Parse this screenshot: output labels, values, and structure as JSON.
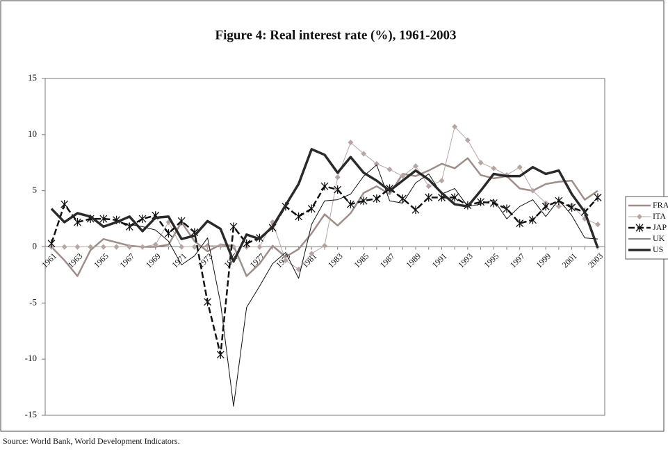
{
  "chart_data": {
    "type": "line",
    "title": "Figure 4: Real interest rate (%), 1961-2003",
    "source": "Source: World Bank, World Development Indicators.",
    "categories": [
      "1961",
      null,
      "1963",
      null,
      "1965",
      null,
      "1967",
      null,
      "1969",
      null,
      "1971",
      null,
      "1973",
      null,
      "1975",
      null,
      "1977",
      null,
      "1979",
      null,
      "1981",
      null,
      "1983",
      null,
      "1985",
      null,
      "1987",
      null,
      "1989",
      null,
      "1991",
      null,
      "1993",
      null,
      "1995",
      null,
      "1997",
      null,
      "1999",
      null,
      "2001",
      null,
      "2003"
    ],
    "ylim": [
      -15,
      15
    ],
    "yticks": [
      -15,
      -10,
      -5,
      0,
      5,
      10,
      15
    ],
    "grid": false,
    "legend": "right",
    "series": [
      {
        "name": "FRA",
        "color": "#9e8e89",
        "style": "medium",
        "marker": "none",
        "values": [
          0,
          -1.2,
          -2.6,
          -0.3,
          0.7,
          0.4,
          0.1,
          0,
          0,
          0.2,
          2.2,
          0.5,
          -0.4,
          0.2,
          0.1,
          -2.6,
          -1.5,
          0.1,
          -0.9,
          -0.2,
          1.2,
          2.9,
          1.9,
          3.0,
          4.8,
          5.4,
          4.7,
          6.5,
          6.3,
          6.8,
          7.4,
          7.0,
          7.9,
          6.4,
          6.1,
          6.3,
          5.2,
          5.0,
          5.6,
          5.8,
          5.9,
          4.2,
          5.0
        ]
      },
      {
        "name": "ITA",
        "color": "#b6a6a2",
        "style": "thin",
        "marker": "diamond",
        "values": [
          0,
          0,
          0,
          0,
          0,
          0,
          0,
          0,
          0.2,
          2.2,
          0,
          0,
          0.1,
          0.1,
          0,
          0,
          0,
          2.2,
          -1.2,
          -2.0,
          -0.6,
          0.1,
          6.2,
          9.3,
          8.3,
          7.4,
          6.9,
          6.3,
          7.2,
          5.4,
          5.9,
          10.7,
          9.5,
          7.5,
          7.0,
          6.4,
          7.1,
          5.0,
          3.9,
          3.6,
          3.7,
          2.5,
          2.0
        ]
      },
      {
        "name": "JAP",
        "color": "#111111",
        "style": "dashed",
        "marker": "star",
        "values": [
          0.3,
          3.8,
          2.2,
          2.5,
          2.5,
          2.4,
          1.8,
          2.5,
          2.8,
          1.2,
          2.3,
          1.3,
          -4.9,
          -9.6,
          1.8,
          0.3,
          0.8,
          1.7,
          3.6,
          2.7,
          3.4,
          5.4,
          5.1,
          3.8,
          4.1,
          4.3,
          5.2,
          4.3,
          3.3,
          4.4,
          4.4,
          4.4,
          3.7,
          4.0,
          3.9,
          3.4,
          2.1,
          2.4,
          3.6,
          4.1,
          3.5,
          3.1,
          4.4
        ]
      },
      {
        "name": "UK",
        "color": "#111111",
        "style": "thin",
        "marker": "none",
        "values": [
          null,
          null,
          null,
          null,
          null,
          2.3,
          2.0,
          1.8,
          1.5,
          0.5,
          -1.6,
          -0.8,
          0.8,
          -5.0,
          -14.2,
          -5.4,
          -3.5,
          -1.5,
          -0.5,
          -2.8,
          2.0,
          4.1,
          4.2,
          4.7,
          6.3,
          7.3,
          4.1,
          3.9,
          5.7,
          6.5,
          4.7,
          5.2,
          3.6,
          3.8,
          4.2,
          2.5,
          3.6,
          4.2,
          2.7,
          4.2,
          2.8,
          0.8,
          0.7
        ]
      },
      {
        "name": "US",
        "color": "#2a2a2a",
        "style": "thick",
        "marker": "none",
        "values": [
          3.4,
          2.2,
          3.0,
          2.7,
          1.8,
          2.2,
          2.7,
          1.4,
          2.6,
          2.7,
          0.7,
          1.0,
          2.3,
          1.6,
          -1.3,
          1.1,
          0.7,
          1.8,
          3.7,
          5.6,
          8.7,
          8.2,
          6.6,
          8.0,
          6.6,
          5.9,
          5.0,
          5.9,
          6.8,
          6.0,
          4.8,
          3.8,
          3.6,
          5.0,
          6.5,
          6.3,
          6.3,
          7.1,
          6.5,
          6.8,
          4.7,
          3.1,
          -0.1
        ]
      }
    ]
  }
}
